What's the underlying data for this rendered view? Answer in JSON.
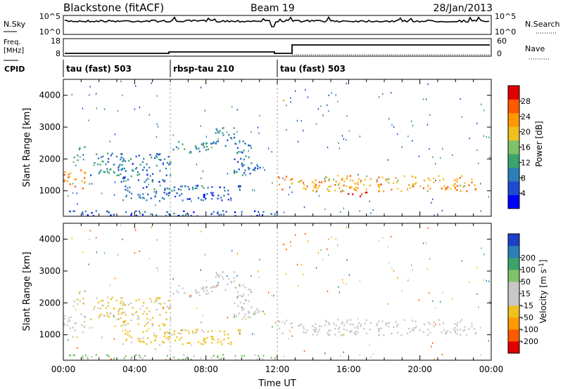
{
  "header": {
    "station": "Blackstone (fitACF)",
    "beam": "Beam 19",
    "date": "28/Jan/2013"
  },
  "noise_panel": {
    "left_label": "N.Sky",
    "right_label": "N.Search",
    "left_ticks": [
      "10^5",
      "10^0"
    ],
    "right_ticks": [
      "10^5",
      "10^0"
    ]
  },
  "freq_panel": {
    "left_label_top": "Freq.",
    "left_label_unit": "[MHz]",
    "left_ticks": [
      "18",
      "8"
    ],
    "right_label": "Nave",
    "right_ticks": [
      "60",
      "0"
    ]
  },
  "cpid": {
    "label": "CPID",
    "segments": [
      {
        "start": 0,
        "end": 6,
        "name": "tau (fast) 503"
      },
      {
        "start": 6,
        "end": 12,
        "name": "rbsp-tau 210"
      },
      {
        "start": 12,
        "end": 24,
        "name": "tau (fast) 503"
      }
    ]
  },
  "colors": {
    "power_scale": [
      "#0000ff",
      "#1e4bd2",
      "#2c7fb8",
      "#3aa46b",
      "#7fc26b",
      "#f0c020",
      "#ff9900",
      "#ff5a00",
      "#e00000"
    ],
    "velocity_scale": [
      "#e00000",
      "#ff5a00",
      "#ff9900",
      "#f0c020",
      "#c8c8c8",
      "#c8c8c8",
      "#7fc26b",
      "#3aa46b",
      "#2c7fb8",
      "#1e3fc8"
    ]
  },
  "chart_data": [
    {
      "type": "heatmap",
      "title": "",
      "xlabel": "",
      "ylabel": "Slant Range [km]",
      "xlim": [
        0,
        24
      ],
      "ylim": [
        200,
        4500
      ],
      "yticks": [
        1000,
        2000,
        3000,
        4000
      ],
      "colorbar": {
        "label": "Power [dB]",
        "ticks": [
          4,
          8,
          12,
          16,
          20,
          24,
          28
        ],
        "range": [
          0,
          32
        ]
      },
      "echo_regions": [
        {
          "t0": 0.0,
          "t1": 1.2,
          "r0": 1100,
          "r1": 1700,
          "value": 24
        },
        {
          "t0": 0.5,
          "t1": 1.2,
          "r0": 1900,
          "r1": 2400,
          "value": 12
        },
        {
          "t0": 1.5,
          "t1": 3.5,
          "r0": 1500,
          "r1": 2200,
          "value": 10
        },
        {
          "t0": 3.0,
          "t1": 6.0,
          "r0": 1300,
          "r1": 2200,
          "value": 8
        },
        {
          "t0": 3.2,
          "t1": 10.0,
          "r0": 700,
          "r1": 1200,
          "value": 7
        },
        {
          "t0": 6.0,
          "t1": 8.5,
          "r0": 2200,
          "r1": 2600,
          "value": 12
        },
        {
          "t0": 8.3,
          "t1": 9.6,
          "r0": 2400,
          "r1": 3000,
          "value": 9
        },
        {
          "t0": 9.5,
          "t1": 11.0,
          "r0": 1500,
          "r1": 2600,
          "value": 9
        },
        {
          "t0": 12.3,
          "t1": 12.6,
          "r0": 3600,
          "r1": 3900,
          "value": 14
        },
        {
          "t0": 12.0,
          "t1": 23.2,
          "r0": 1000,
          "r1": 1500,
          "value": 22
        },
        {
          "t0": 15.8,
          "t1": 17.2,
          "r0": 850,
          "r1": 1000,
          "value": 30
        },
        {
          "t0": 0.0,
          "t1": 12.0,
          "r0": 200,
          "r1": 400,
          "value": 6
        }
      ]
    },
    {
      "type": "heatmap",
      "title": "",
      "xlabel": "Time UT",
      "ylabel": "Slant Range [km]",
      "xlim": [
        0,
        24
      ],
      "ylim": [
        200,
        4500
      ],
      "yticks": [
        1000,
        2000,
        3000,
        4000
      ],
      "xticks": [
        "00:00",
        "04:00",
        "08:00",
        "12:00",
        "16:00",
        "20:00",
        "00:00"
      ],
      "colorbar": {
        "label": "Velocity [m s^-1]",
        "ticks": [
          -200,
          -100,
          -50,
          -15,
          15,
          50,
          100,
          200
        ],
        "range": [
          -250,
          250
        ]
      },
      "echo_regions": [
        {
          "t0": 0.0,
          "t1": 1.2,
          "r0": 1100,
          "r1": 1700,
          "value": 0
        },
        {
          "t0": 0.5,
          "t1": 1.2,
          "r0": 1900,
          "r1": 2400,
          "value": -40
        },
        {
          "t0": 1.5,
          "t1": 3.5,
          "r0": 1500,
          "r1": 2200,
          "value": -60
        },
        {
          "t0": 3.0,
          "t1": 6.0,
          "r0": 1300,
          "r1": 2200,
          "value": -60
        },
        {
          "t0": 3.2,
          "t1": 10.0,
          "r0": 700,
          "r1": 1200,
          "value": -70
        },
        {
          "t0": 6.0,
          "t1": 8.5,
          "r0": 2200,
          "r1": 2600,
          "value": 0
        },
        {
          "t0": 8.3,
          "t1": 9.6,
          "r0": 2400,
          "r1": 3000,
          "value": 5
        },
        {
          "t0": 9.5,
          "t1": 11.0,
          "r0": 1500,
          "r1": 2600,
          "value": 30
        },
        {
          "t0": 12.3,
          "t1": 12.6,
          "r0": 3600,
          "r1": 3900,
          "value": -150
        },
        {
          "t0": 12.0,
          "t1": 23.2,
          "r0": 1000,
          "r1": 1500,
          "value": 0
        },
        {
          "t0": 0.0,
          "t1": 12.0,
          "r0": 200,
          "r1": 400,
          "value": 60
        }
      ]
    }
  ]
}
